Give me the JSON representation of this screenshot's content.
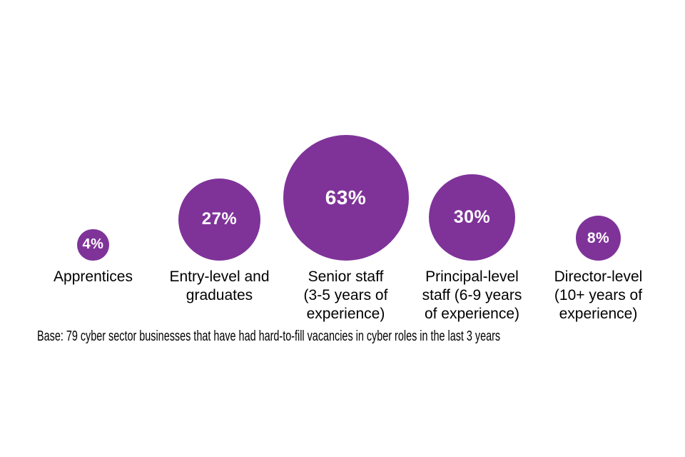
{
  "chart_data": {
    "type": "bubble",
    "categories": [
      "Apprentices",
      "Entry-level and graduates",
      "Senior staff (3-5 years of experience)",
      "Principal-level staff (6-9 years of experience)",
      "Director-level (10+ years of experience)"
    ],
    "label_lines": [
      [
        "Apprentices"
      ],
      [
        "Entry-level and",
        "graduates"
      ],
      [
        "Senior staff",
        "(3-5 years of",
        "experience)"
      ],
      [
        "Principal-level",
        "staff (6-9 years",
        "of experience)"
      ],
      [
        "Director-level",
        "(10+ years of",
        "experience)"
      ]
    ],
    "values": [
      4,
      27,
      63,
      30,
      8
    ],
    "value_labels": [
      "4%",
      "27%",
      "63%",
      "30%",
      "8%"
    ],
    "note": "Base: 79 cyber sector businesses that have had hard-to-fill vacancies in cyber roles in the last 3 years",
    "bubble_color": "#7f3399",
    "value_text_color": "#ffffff",
    "label_text_color": "#000000",
    "radius_scale": "sqrt",
    "max_radius_px": 88,
    "legend": "none",
    "grid": false,
    "axes": "none"
  }
}
